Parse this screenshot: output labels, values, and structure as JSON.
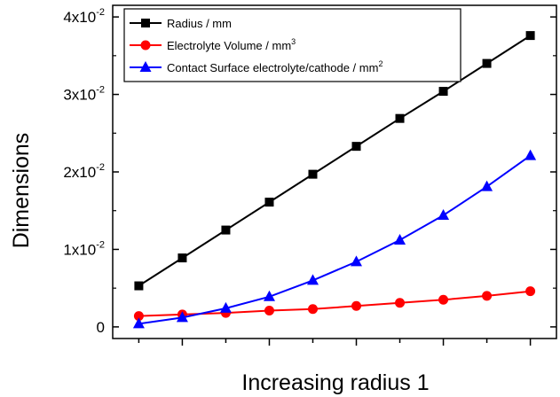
{
  "chart_data": {
    "type": "line",
    "xlabel": "Increasing radius 1",
    "ylabel": "Dimensions",
    "x": [
      1,
      2,
      3,
      4,
      5,
      6,
      7,
      8,
      9,
      10
    ],
    "xlim": [
      0.4,
      10.6
    ],
    "ylim": [
      -0.0015,
      0.0415
    ],
    "y_ticks": [
      {
        "value": 0,
        "base": "0",
        "exp": ""
      },
      {
        "value": 0.01,
        "base": "1x10",
        "exp": "-2"
      },
      {
        "value": 0.02,
        "base": "2x10",
        "exp": "-2"
      },
      {
        "value": 0.03,
        "base": "3x10",
        "exp": "-2"
      },
      {
        "value": 0.04,
        "base": "4x10",
        "exp": "-2"
      }
    ],
    "grid": false,
    "legend_position": "top-left",
    "series": [
      {
        "name": "Radius / mm",
        "unit_exp": "",
        "color": "#000000",
        "marker": "square",
        "values": [
          0.0053,
          0.0089,
          0.0125,
          0.0161,
          0.0197,
          0.0233,
          0.0269,
          0.0304,
          0.034,
          0.0376
        ]
      },
      {
        "name": "Electrolyte Volume / mm",
        "unit_exp": "3",
        "color": "#ff0000",
        "marker": "circle",
        "values": [
          0.0014,
          0.0016,
          0.0018,
          0.0021,
          0.0023,
          0.0027,
          0.0031,
          0.0035,
          0.004,
          0.0046
        ]
      },
      {
        "name": "Contact Surface electrolyte/cathode / mm",
        "unit_exp": "2",
        "color": "#0000ff",
        "marker": "triangle",
        "values": [
          0.0004,
          0.0012,
          0.0024,
          0.0039,
          0.006,
          0.0084,
          0.0112,
          0.0144,
          0.0181,
          0.0221
        ]
      }
    ]
  }
}
